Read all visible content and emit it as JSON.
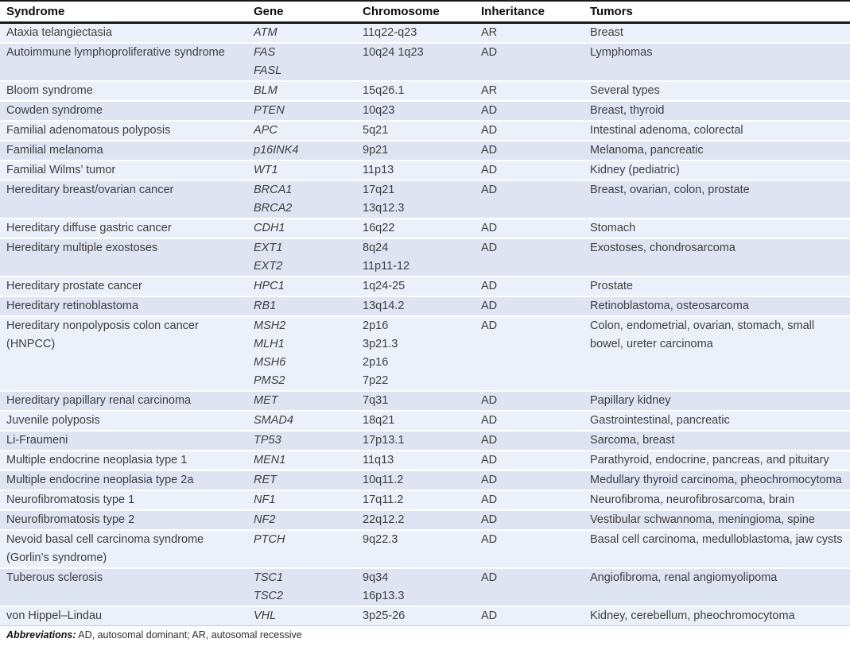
{
  "colors": {
    "row_light": "#eaf1fa",
    "row_dark": "#dfe4f3",
    "header_rule": "#1a1a1a",
    "body_text": "#3e3e40"
  },
  "table": {
    "columns": [
      "Syndrome",
      "Gene",
      "Chromosome",
      "Inheritance",
      "Tumors"
    ],
    "rows": [
      {
        "syndrome": "Ataxia telangiectasia",
        "genes": [
          {
            "name": "ATM",
            "chromosome": "11q22-q23"
          }
        ],
        "inheritance": "AR",
        "tumors": "Breast"
      },
      {
        "syndrome": "Autoimmune lymphoproliferative syndrome",
        "genes": [
          {
            "name": "FAS",
            "chromosome": "10q24 1q23"
          },
          {
            "name": "FASL",
            "chromosome": ""
          }
        ],
        "inheritance": "AD",
        "tumors": "Lymphomas"
      },
      {
        "syndrome": "Bloom syndrome",
        "genes": [
          {
            "name": "BLM",
            "chromosome": "15q26.1"
          }
        ],
        "inheritance": "AR",
        "tumors": "Several types"
      },
      {
        "syndrome": "Cowden syndrome",
        "genes": [
          {
            "name": "PTEN",
            "chromosome": "10q23"
          }
        ],
        "inheritance": "AD",
        "tumors": "Breast, thyroid"
      },
      {
        "syndrome": "Familial adenomatous polyposis",
        "genes": [
          {
            "name": "APC",
            "chromosome": "5q21"
          }
        ],
        "inheritance": "AD",
        "tumors": "Intestinal adenoma, colorectal"
      },
      {
        "syndrome": "Familial melanoma",
        "genes": [
          {
            "name": "p16INK4",
            "chromosome": "9p21"
          }
        ],
        "inheritance": "AD",
        "tumors": "Melanoma, pancreatic"
      },
      {
        "syndrome": "Familial Wilms’ tumor",
        "genes": [
          {
            "name": "WT1",
            "chromosome": "11p13"
          }
        ],
        "inheritance": "AD",
        "tumors": "Kidney (pediatric)"
      },
      {
        "syndrome": "Hereditary breast/ovarian cancer",
        "genes": [
          {
            "name": "BRCA1",
            "chromosome": "17q21"
          },
          {
            "name": "BRCA2",
            "chromosome": "13q12.3"
          }
        ],
        "inheritance": "AD",
        "tumors": "Breast, ovarian, colon, prostate"
      },
      {
        "syndrome": "Hereditary diffuse gastric cancer",
        "genes": [
          {
            "name": "CDH1",
            "chromosome": "16q22"
          }
        ],
        "inheritance": "AD",
        "tumors": "Stomach"
      },
      {
        "syndrome": "Hereditary multiple exostoses",
        "genes": [
          {
            "name": "EXT1",
            "chromosome": "8q24"
          },
          {
            "name": "EXT2",
            "chromosome": "11p11-12"
          }
        ],
        "inheritance": "AD",
        "tumors": "Exostoses, chondrosarcoma"
      },
      {
        "syndrome": "Hereditary prostate cancer",
        "genes": [
          {
            "name": "HPC1",
            "chromosome": "1q24-25"
          }
        ],
        "inheritance": "AD",
        "tumors": "Prostate"
      },
      {
        "syndrome": "Hereditary retinoblastoma",
        "genes": [
          {
            "name": "RB1",
            "chromosome": "13q14.2"
          }
        ],
        "inheritance": "AD",
        "tumors": "Retinoblastoma, osteosarcoma"
      },
      {
        "syndrome": "Hereditary nonpolyposis colon cancer (HNPCC)",
        "genes": [
          {
            "name": "MSH2",
            "chromosome": "2p16"
          },
          {
            "name": "MLH1",
            "chromosome": "3p21.3"
          },
          {
            "name": "MSH6",
            "chromosome": "2p16"
          },
          {
            "name": "PMS2",
            "chromosome": "7p22"
          }
        ],
        "inheritance": "AD",
        "tumors": "Colon, endometrial, ovarian, stomach, small bowel, ureter carcinoma"
      },
      {
        "syndrome": "Hereditary papillary renal carcinoma",
        "genes": [
          {
            "name": "MET",
            "chromosome": "7q31"
          }
        ],
        "inheritance": "AD",
        "tumors": "Papillary kidney"
      },
      {
        "syndrome": "Juvenile polyposis",
        "genes": [
          {
            "name": "SMAD4",
            "chromosome": "18q21"
          }
        ],
        "inheritance": "AD",
        "tumors": "Gastrointestinal, pancreatic"
      },
      {
        "syndrome": "Li-Fraumeni",
        "genes": [
          {
            "name": "TP53",
            "chromosome": "17p13.1"
          }
        ],
        "inheritance": "AD",
        "tumors": "Sarcoma, breast"
      },
      {
        "syndrome": "Multiple endocrine neoplasia type 1",
        "genes": [
          {
            "name": "MEN1",
            "chromosome": "11q13"
          }
        ],
        "inheritance": "AD",
        "tumors": "Parathyroid, endocrine, pancreas, and pituitary"
      },
      {
        "syndrome": "Multiple endocrine neoplasia type 2a",
        "genes": [
          {
            "name": "RET",
            "chromosome": "10q11.2"
          }
        ],
        "inheritance": "AD",
        "tumors": "Medullary thyroid carcinoma, pheochromocytoma"
      },
      {
        "syndrome": "Neurofibromatosis type 1",
        "genes": [
          {
            "name": "NF1",
            "chromosome": "17q11.2"
          }
        ],
        "inheritance": "AD",
        "tumors": "Neurofibroma, neurofibrosarcoma, brain"
      },
      {
        "syndrome": "Neurofibromatosis type 2",
        "genes": [
          {
            "name": "NF2",
            "chromosome": "22q12.2"
          }
        ],
        "inheritance": "AD",
        "tumors": "Vestibular schwannoma, meningioma, spine"
      },
      {
        "syndrome": "Nevoid basal cell carcinoma syndrome (Gorlin’s syndrome)",
        "genes": [
          {
            "name": "PTCH",
            "chromosome": "9q22.3"
          }
        ],
        "inheritance": "AD",
        "tumors": "Basal cell carcinoma, medulloblastoma, jaw cysts"
      },
      {
        "syndrome": "Tuberous sclerosis",
        "genes": [
          {
            "name": "TSC1",
            "chromosome": "9q34"
          },
          {
            "name": "TSC2",
            "chromosome": "16p13.3"
          }
        ],
        "inheritance": "AD",
        "tumors": "Angiofibroma, renal angiomyolipoma"
      },
      {
        "syndrome": "von Hippel–Lindau",
        "genes": [
          {
            "name": "VHL",
            "chromosome": "3p25-26"
          }
        ],
        "inheritance": "AD",
        "tumors": "Kidney, cerebellum, pheochromocytoma"
      }
    ],
    "footnote": {
      "label": "Abbreviations:",
      "text": " AD, autosomal dominant; AR, autosomal recessive"
    }
  }
}
